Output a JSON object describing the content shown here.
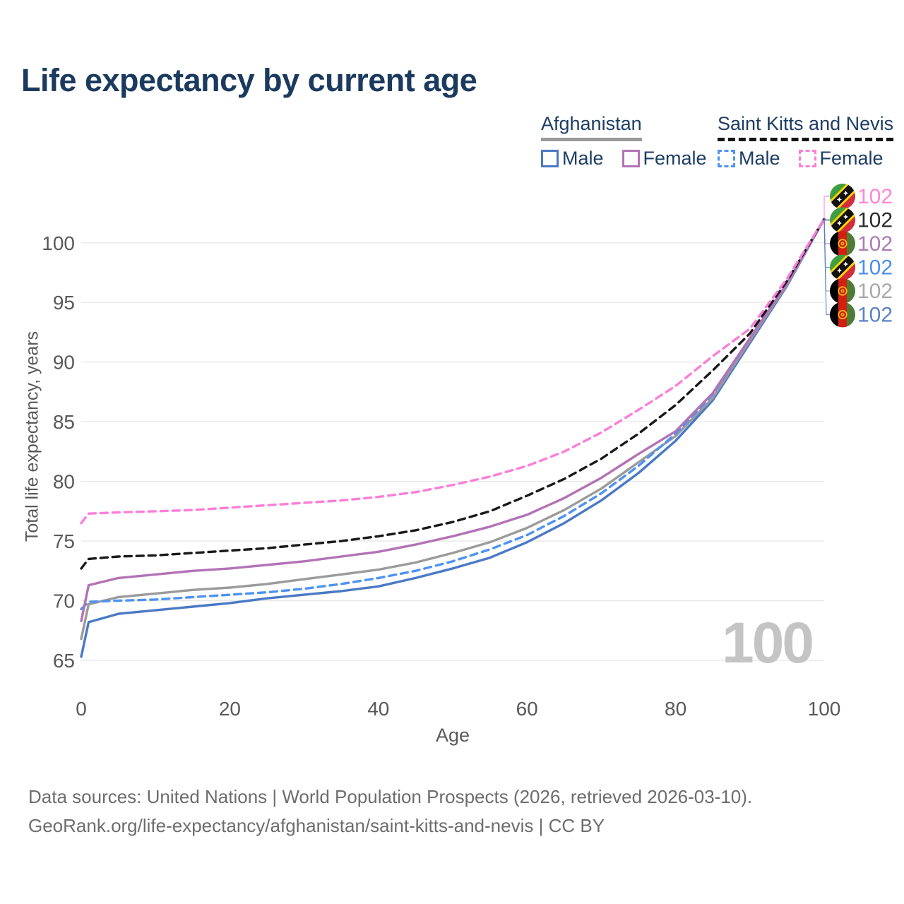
{
  "title": "Life expectancy by current age",
  "legend": {
    "groups": [
      {
        "label": "Afghanistan",
        "line_style": "solid",
        "line_color": "#9a9a9a",
        "items": [
          {
            "label": "Male",
            "color": "#4a79c5",
            "style": "solid"
          },
          {
            "label": "Female",
            "color": "#b273b6",
            "style": "solid"
          }
        ]
      },
      {
        "label": "Saint Kitts and Nevis",
        "line_style": "dashed",
        "line_color": "#151515",
        "items": [
          {
            "label": "Male",
            "color": "#4e92f2",
            "style": "dashed"
          },
          {
            "label": "Female",
            "color": "#fb7ed9",
            "style": "dashed"
          }
        ]
      }
    ]
  },
  "chart_data": {
    "type": "line",
    "title": "Life expectancy by current age",
    "xlabel": "Age",
    "ylabel": "Total life expectancy, years",
    "xlim": [
      0,
      100
    ],
    "ylim": [
      63.5,
      103
    ],
    "xticks": [
      0,
      20,
      40,
      60,
      80,
      100
    ],
    "yticks": [
      65,
      70,
      75,
      80,
      85,
      90,
      95,
      100
    ],
    "grid": "horizontal",
    "legend_position": "top-right",
    "watermark": "100",
    "x": [
      0,
      1,
      5,
      10,
      15,
      20,
      25,
      30,
      35,
      40,
      45,
      50,
      55,
      60,
      65,
      70,
      75,
      80,
      85,
      90,
      95,
      100
    ],
    "series": [
      {
        "id": "skn-female",
        "name": "Saint Kitts and Nevis — Female",
        "country": "Saint Kitts and Nevis",
        "sex": "Female",
        "flag": "kn",
        "color": "#fb7ed9",
        "dash": "dashed",
        "end_label": "102",
        "end_label_color": "#ff85d6",
        "values": [
          76.5,
          77.3,
          77.4,
          77.5,
          77.6,
          77.8,
          78.0,
          78.2,
          78.4,
          78.7,
          79.1,
          79.7,
          80.4,
          81.3,
          82.5,
          84.1,
          86.0,
          88.0,
          90.5,
          92.8,
          97.0,
          102
        ]
      },
      {
        "id": "skn-both",
        "name": "Saint Kitts and Nevis — Both sexes",
        "country": "Saint Kitts and Nevis",
        "sex": "Both sexes",
        "flag": "kn",
        "color": "#191919",
        "dash": "dashed",
        "end_label": "102",
        "end_label_color": "#2b2b2b",
        "values": [
          72.7,
          73.5,
          73.7,
          73.8,
          74.0,
          74.2,
          74.4,
          74.7,
          75.0,
          75.4,
          75.9,
          76.6,
          77.5,
          78.8,
          80.2,
          81.9,
          84.0,
          86.4,
          89.3,
          92.4,
          96.8,
          102
        ]
      },
      {
        "id": "afg-female",
        "name": "Afghanistan — Female",
        "country": "Afghanistan",
        "sex": "Female",
        "flag": "af",
        "color": "#b273b6",
        "dash": "solid",
        "end_label": "102",
        "end_label_color": "#ab7cb5",
        "values": [
          68.3,
          71.3,
          71.9,
          72.2,
          72.5,
          72.7,
          73.0,
          73.3,
          73.7,
          74.1,
          74.7,
          75.4,
          76.2,
          77.2,
          78.6,
          80.3,
          82.3,
          84.2,
          87.4,
          92.0,
          96.6,
          102
        ]
      },
      {
        "id": "skn-male",
        "name": "Saint Kitts and Nevis — Male",
        "country": "Saint Kitts and Nevis",
        "sex": "Male",
        "flag": "kn",
        "color": "#4e92f2",
        "dash": "dashed",
        "end_label": "102",
        "end_label_color": "#4b8ef0",
        "values": [
          69.3,
          69.9,
          70.0,
          70.1,
          70.3,
          70.5,
          70.7,
          71.0,
          71.4,
          71.9,
          72.5,
          73.3,
          74.3,
          75.5,
          77.1,
          79.0,
          81.3,
          84.0,
          87.3,
          92.0,
          96.6,
          102
        ]
      },
      {
        "id": "afg-both",
        "name": "Afghanistan — Both sexes",
        "country": "Afghanistan",
        "sex": "Both sexes",
        "flag": "af",
        "color": "#9b9b9b",
        "dash": "solid",
        "end_label": "102",
        "end_label_color": "#a9a9a9",
        "values": [
          66.8,
          69.7,
          70.3,
          70.6,
          70.9,
          71.1,
          71.4,
          71.8,
          72.2,
          72.6,
          73.2,
          74.0,
          74.9,
          76.1,
          77.6,
          79.4,
          81.6,
          83.8,
          87.0,
          91.8,
          96.5,
          102
        ]
      },
      {
        "id": "afg-male",
        "name": "Afghanistan — Male",
        "country": "Afghanistan",
        "sex": "Male",
        "flag": "af",
        "color": "#4a79c5",
        "dash": "solid",
        "end_label": "102",
        "end_label_color": "#5b82c4",
        "values": [
          65.3,
          68.2,
          68.9,
          69.2,
          69.5,
          69.8,
          70.2,
          70.5,
          70.8,
          71.2,
          71.9,
          72.7,
          73.6,
          74.9,
          76.5,
          78.4,
          80.7,
          83.4,
          86.8,
          91.6,
          96.4,
          102
        ]
      }
    ]
  },
  "footer": {
    "line1": "Data sources: United Nations | World Population Prospects (2026, retrieved 2026-03-10).",
    "line2": "GeoRank.org/life-expectancy/afghanistan/saint-kitts-and-nevis | CC BY"
  }
}
